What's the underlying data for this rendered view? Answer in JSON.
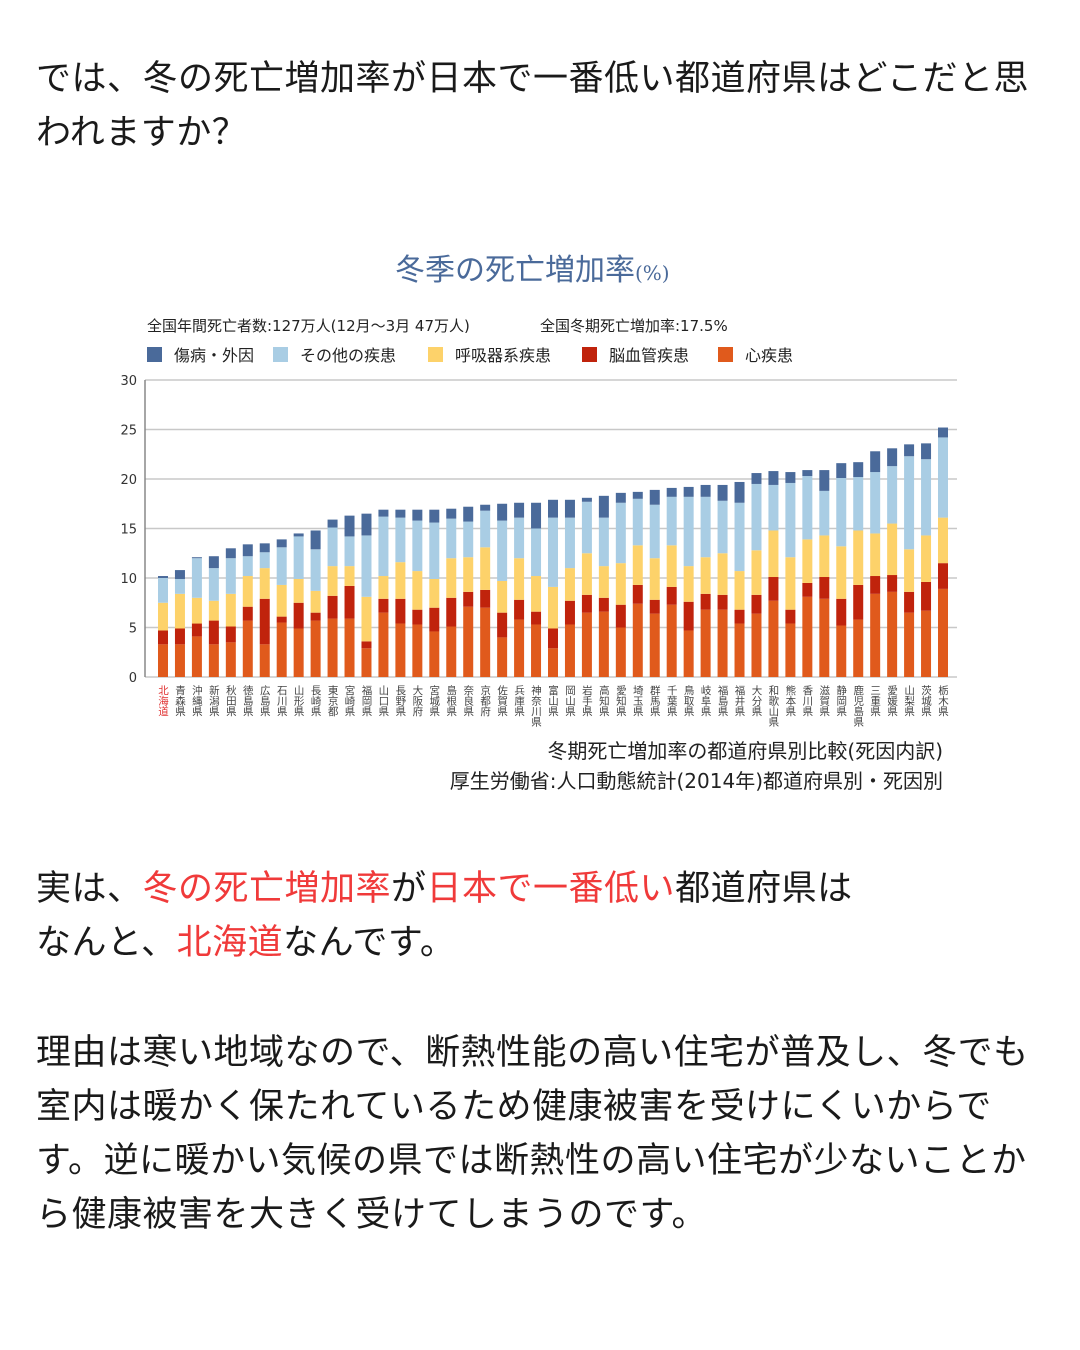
{
  "intro": {
    "text": "では、冬の死亡増加率が日本で一番低い都道府県はどこだと思われますか？"
  },
  "answer": {
    "segments": [
      {
        "text": "実は、",
        "highlight": false
      },
      {
        "text": "冬の死亡増加率",
        "highlight": true
      },
      {
        "text": "が",
        "highlight": false
      },
      {
        "text": "日本で一番低い",
        "highlight": true
      },
      {
        "text": "都道府県は",
        "highlight": false
      },
      {
        "text": "なんと、",
        "highlight": false,
        "newline": true
      },
      {
        "text": "北海道",
        "highlight": true
      },
      {
        "text": "なんです。",
        "highlight": false
      }
    ]
  },
  "reason": {
    "text": "理由は寒い地域なので、断熱性能の高い住宅が普及し、冬でも室内は暖かく保たれているため健康被害を受けにくいからです。逆に暖かい気候の県では断熱性の高い住宅が少ないことから健康被害を大きく受けてしまうのです。"
  },
  "colors": {
    "highlight": "#f03a3a",
    "title": "#4a6a9a"
  },
  "chart_data": {
    "type": "bar",
    "stacked": true,
    "title": "冬季の死亡増加率",
    "title_unit": "(%)",
    "subtitle_left": "全国年間死亡者数:127万人(12月〜3月 47万人)",
    "subtitle_right": "全国冬期死亡増加率:17.5%",
    "caption_line1": "冬期死亡増加率の都道府県別比較(死因内訳)",
    "caption_line2": "厚生労働省:人口動態統計(2014年)都道府県別・死因別",
    "ylim": [
      0,
      30
    ],
    "yticks": [
      0,
      5,
      10,
      15,
      20,
      25,
      30
    ],
    "grid": true,
    "legend_position": "top-left",
    "highlight_category": "北海道",
    "categories": [
      "北海道",
      "青森県",
      "沖縄県",
      "新潟県",
      "秋田県",
      "徳島県",
      "広島県",
      "石川県",
      "山形県",
      "長崎県",
      "東京都",
      "宮崎県",
      "福岡県",
      "山口県",
      "長野県",
      "大阪府",
      "宮城県",
      "島根県",
      "奈良県",
      "京都府",
      "佐賀県",
      "兵庫県",
      "神奈川県",
      "富山県",
      "岡山県",
      "岩手県",
      "高知県",
      "愛知県",
      "埼玉県",
      "群馬県",
      "千葉県",
      "鳥取県",
      "岐阜県",
      "福島県",
      "福井県",
      "大分県",
      "和歌山県",
      "熊本県",
      "香川県",
      "滋賀県",
      "静岡県",
      "鹿児島県",
      "三重県",
      "愛媛県",
      "山梨県",
      "茨城県",
      "栃木県"
    ],
    "legend_order": [
      "傷病・外因",
      "その他の疾患",
      "呼吸器系疾患",
      "脳血管疾患",
      "心疾患"
    ],
    "series": [
      {
        "name": "心疾患",
        "color": "#e05a1c",
        "values": [
          3.3,
          3.3,
          4.1,
          3.3,
          3.5,
          5.7,
          3.3,
          5.5,
          4.9,
          5.7,
          5.9,
          5.9,
          2.9,
          6.5,
          5.4,
          5.3,
          4.6,
          5.1,
          7.1,
          7.0,
          4.0,
          5.8,
          5.3,
          2.9,
          5.3,
          6.5,
          6.6,
          5.0,
          7.4,
          6.4,
          7.3,
          4.7,
          6.8,
          6.8,
          5.4,
          6.4,
          7.7,
          5.4,
          8.1,
          7.9,
          5.2,
          5.8,
          8.4,
          8.6,
          6.5,
          6.7,
          8.9
        ]
      },
      {
        "name": "脳血管疾患",
        "color": "#c0230c",
        "values": [
          1.4,
          1.6,
          1.3,
          2.4,
          1.6,
          1.4,
          4.6,
          0.6,
          2.6,
          0.8,
          2.3,
          3.3,
          0.7,
          1.4,
          2.5,
          1.5,
          2.4,
          2.9,
          1.5,
          1.8,
          2.5,
          2.0,
          1.3,
          2.0,
          2.4,
          1.8,
          1.4,
          2.3,
          1.9,
          1.4,
          1.8,
          2.9,
          1.6,
          1.5,
          1.4,
          1.9,
          2.4,
          1.4,
          1.4,
          2.2,
          2.7,
          3.5,
          1.8,
          1.7,
          2.1,
          2.9,
          2.6
        ]
      },
      {
        "name": "呼吸器系疾患",
        "color": "#fdd26a",
        "values": [
          2.8,
          3.5,
          2.6,
          2.0,
          3.3,
          3.1,
          3.1,
          3.2,
          2.4,
          2.2,
          3.0,
          2.0,
          4.5,
          2.3,
          3.7,
          3.9,
          2.9,
          4.0,
          3.5,
          4.3,
          3.2,
          4.2,
          3.6,
          4.2,
          3.3,
          4.2,
          3.2,
          4.2,
          4.0,
          4.2,
          4.2,
          3.6,
          3.7,
          4.2,
          3.9,
          4.5,
          4.7,
          5.3,
          4.4,
          4.2,
          5.3,
          5.5,
          4.3,
          5.2,
          4.3,
          4.7,
          4.6
        ]
      },
      {
        "name": "その他の疾患",
        "color": "#a9cde4",
        "values": [
          2.5,
          1.5,
          4.0,
          3.3,
          3.6,
          2.0,
          1.6,
          3.8,
          4.3,
          4.2,
          3.9,
          3.0,
          6.2,
          6.0,
          4.5,
          5.1,
          5.7,
          4.0,
          3.6,
          3.7,
          6.1,
          4.1,
          4.8,
          7.0,
          5.1,
          5.2,
          4.9,
          6.1,
          4.7,
          5.4,
          4.9,
          7.0,
          6.1,
          5.3,
          6.9,
          6.7,
          4.6,
          7.5,
          6.4,
          4.5,
          6.9,
          5.4,
          6.2,
          5.8,
          9.4,
          7.7,
          8.1
        ]
      },
      {
        "name": "傷病・外因",
        "color": "#4a6a9a",
        "values": [
          0.2,
          0.9,
          0.1,
          1.2,
          1.0,
          1.2,
          0.9,
          0.8,
          0.3,
          1.9,
          0.8,
          2.1,
          2.2,
          0.7,
          0.8,
          1.1,
          1.3,
          1.0,
          1.5,
          0.6,
          1.7,
          1.5,
          2.6,
          1.8,
          1.8,
          0.4,
          2.2,
          1.0,
          0.7,
          1.5,
          0.9,
          1.0,
          1.2,
          1.6,
          2.1,
          1.1,
          1.4,
          1.1,
          0.6,
          2.1,
          1.5,
          1.5,
          2.1,
          1.8,
          1.2,
          1.6,
          1.0
        ]
      }
    ]
  }
}
